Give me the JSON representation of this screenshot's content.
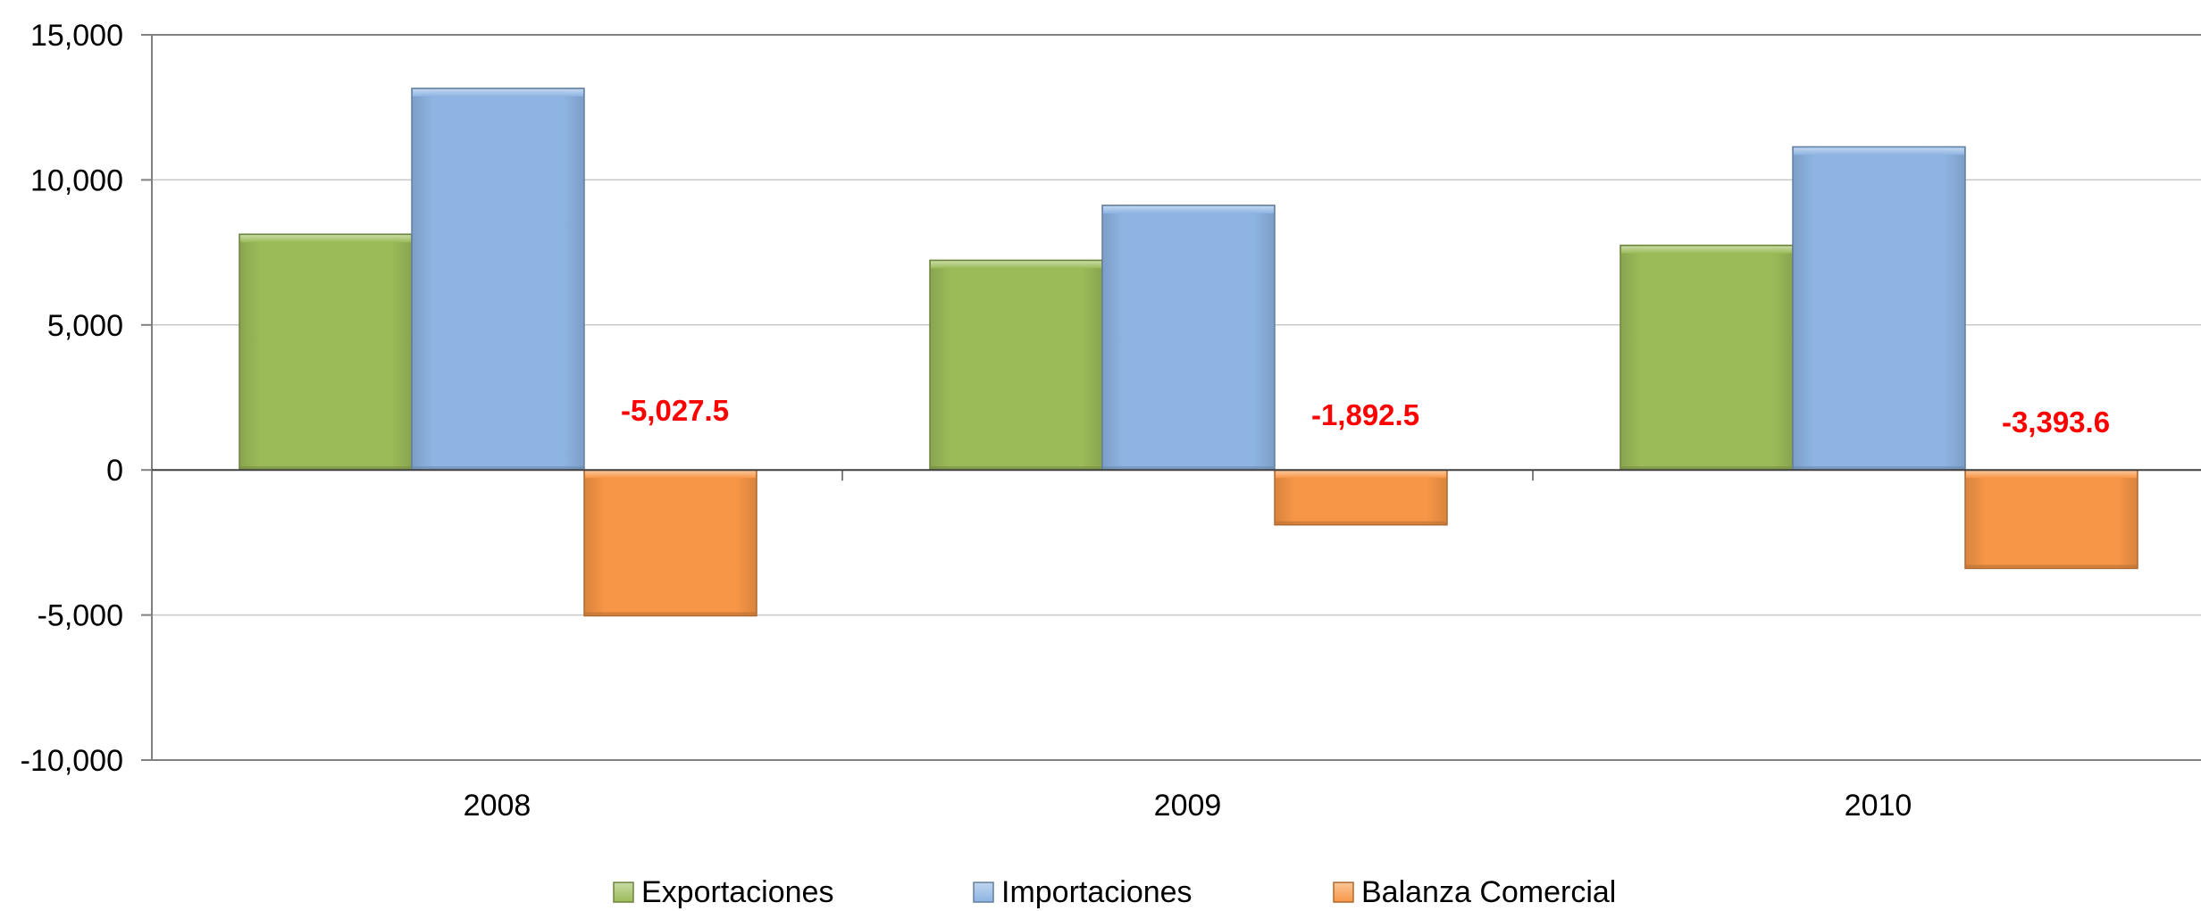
{
  "chart_data": {
    "type": "bar",
    "categories": [
      "2008",
      "2009",
      "2010"
    ],
    "series": [
      {
        "name": "Exportaciones",
        "color": "#9bbb59",
        "values": [
          8127,
          7230,
          7745
        ]
      },
      {
        "name": "Importaciones",
        "color": "#8db4e2",
        "values": [
          13154.5,
          9122.5,
          11138.6
        ]
      },
      {
        "name": "Balanza Comercial",
        "color": "#f79646",
        "values": [
          -5027.5,
          -1892.5,
          -3393.6
        ],
        "labels": [
          "-5,027.5",
          "-1,892.5",
          "-3,393.6"
        ]
      }
    ],
    "ylim": [
      -10000,
      15000
    ],
    "yticks": [
      15000,
      10000,
      5000,
      0,
      -5000,
      -10000
    ],
    "ytick_labels": [
      "15,000",
      "10,000",
      "5,000",
      "0",
      "-5,000",
      "-10,000"
    ],
    "grid": true,
    "legend_position": "bottom",
    "data_label_color": "#ff0000",
    "title": "",
    "xlabel": "",
    "ylabel": ""
  }
}
